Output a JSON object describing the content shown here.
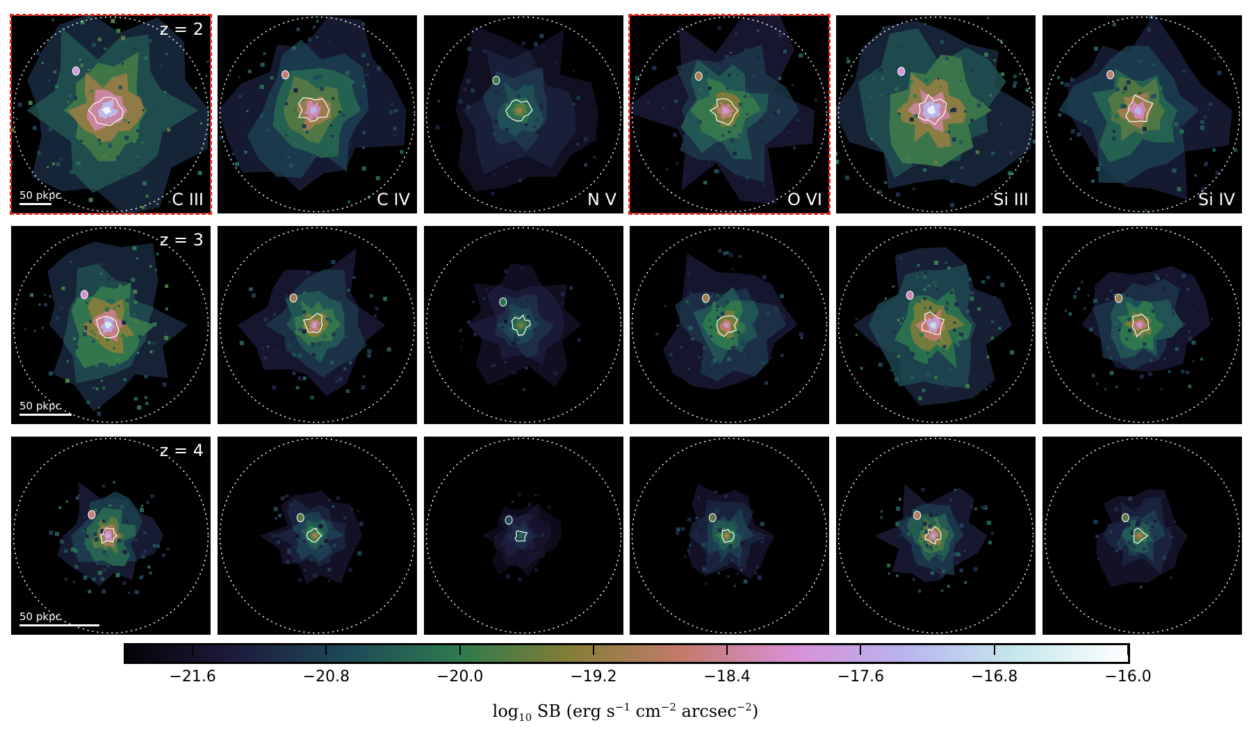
{
  "figure": {
    "rows": [
      {
        "redshift": "z = 2",
        "scale_bar": {
          "label": "50 pkpc",
          "fraction_of_panel": 0.16
        }
      },
      {
        "redshift": "z = 3",
        "scale_bar": {
          "label": "50 pkpc",
          "fraction_of_panel": 0.26
        }
      },
      {
        "redshift": "z = 4",
        "scale_bar": {
          "label": "50 pkpc",
          "fraction_of_panel": 0.4
        }
      }
    ],
    "columns": [
      {
        "ion": "C III",
        "brightness": [
          1.0,
          0.95,
          0.82
        ]
      },
      {
        "ion": "C IV",
        "brightness": [
          0.8,
          0.72,
          0.55
        ]
      },
      {
        "ion": "N V",
        "brightness": [
          0.5,
          0.45,
          0.32
        ]
      },
      {
        "ion": "O VI",
        "brightness": [
          0.72,
          0.7,
          0.55
        ]
      },
      {
        "ion": "Si III",
        "brightness": [
          0.98,
          0.9,
          0.76
        ]
      },
      {
        "ion": "Si IV",
        "brightness": [
          0.8,
          0.7,
          0.55
        ]
      }
    ],
    "highlighted_panels": [
      {
        "row": 0,
        "col": 0
      },
      {
        "row": 0,
        "col": 3
      }
    ],
    "colorbar": {
      "ticks": [
        "−21.6",
        "−20.8",
        "−20.0",
        "−19.2",
        "−18.4",
        "−17.6",
        "−16.8",
        "−16.0"
      ],
      "tick_values": [
        -21.6,
        -20.8,
        -20.0,
        -19.2,
        -18.4,
        -17.6,
        -16.8,
        -16.0
      ],
      "range": [
        -22.0,
        -16.0
      ],
      "colors": [
        "#050208",
        "#1e1c3e",
        "#1e4a58",
        "#2e7a4e",
        "#857d36",
        "#c37b6c",
        "#d890d6",
        "#b8b4ee",
        "#c6e8ec",
        "#ffffff"
      ],
      "label_prefix": "log",
      "label_sub": "10",
      "label_main": " SB (erg s",
      "label_sup1": "−1",
      "label_cm": " cm",
      "label_sup2": "−2",
      "label_arc": " arcsec",
      "label_sup3": "−2",
      "label_end": ")"
    }
  }
}
